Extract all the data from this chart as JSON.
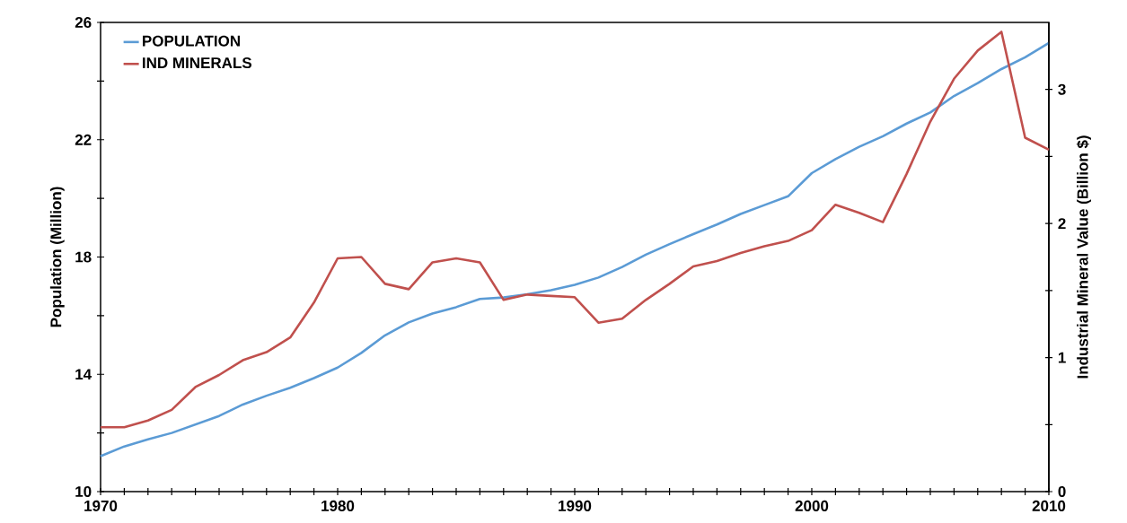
{
  "chart_data": {
    "type": "line",
    "ylabel": "Population (Million)",
    "y2label": "Industrial Mineral Value (Billion $)",
    "x": [
      1970,
      1971,
      1972,
      1973,
      1974,
      1975,
      1976,
      1977,
      1978,
      1979,
      1980,
      1981,
      1982,
      1983,
      1984,
      1985,
      1986,
      1987,
      1988,
      1989,
      1990,
      1991,
      1992,
      1993,
      1994,
      1995,
      1996,
      1997,
      1998,
      1999,
      2000,
      2001,
      2002,
      2003,
      2004,
      2005,
      2006,
      2007,
      2008,
      2009,
      2010
    ],
    "series": [
      {
        "name": "POPULATION",
        "color": "#5b9bd5",
        "values": [
          11.21,
          11.54,
          11.78,
          12.0,
          12.29,
          12.58,
          12.97,
          13.27,
          13.54,
          13.87,
          14.23,
          14.73,
          15.33,
          15.77,
          16.07,
          16.29,
          16.57,
          16.62,
          16.73,
          16.87,
          17.05,
          17.3,
          17.66,
          18.08,
          18.44,
          18.78,
          19.11,
          19.47,
          19.77,
          20.07,
          20.86,
          21.34,
          21.76,
          22.12,
          22.55,
          22.93,
          23.49,
          23.93,
          24.41,
          24.81,
          25.3
        ]
      },
      {
        "name": "IND MINERALS",
        "color": "#c0504d",
        "axis": "y2",
        "values": [
          0.48,
          0.48,
          0.53,
          0.61,
          0.78,
          0.87,
          0.98,
          1.04,
          1.15,
          1.41,
          1.74,
          1.75,
          1.55,
          1.51,
          1.71,
          1.74,
          1.71,
          1.43,
          1.47,
          1.46,
          1.45,
          1.26,
          1.29,
          1.43,
          1.55,
          1.68,
          1.72,
          1.78,
          1.83,
          1.87,
          1.95,
          2.14,
          2.08,
          2.01,
          2.37,
          2.76,
          3.08,
          3.29,
          3.43,
          2.64,
          2.55
        ]
      }
    ],
    "xlim": [
      1970,
      2010
    ],
    "xticks": [
      1970,
      {
        "value": 1971,
        "label": null
      },
      {
        "value": 1972,
        "label": null
      },
      {
        "value": 1973,
        "label": null
      },
      {
        "value": 1974,
        "label": null
      },
      {
        "value": 1975,
        "label": null
      },
      {
        "value": 1976,
        "label": null
      },
      {
        "value": 1977,
        "label": null
      },
      {
        "value": 1978,
        "label": null
      },
      {
        "value": 1979,
        "label": null
      },
      1980,
      {
        "value": 1981,
        "label": null
      },
      {
        "value": 1982,
        "label": null
      },
      {
        "value": 1983,
        "label": null
      },
      {
        "value": 1984,
        "label": null
      },
      {
        "value": 1985,
        "label": null
      },
      {
        "value": 1986,
        "label": null
      },
      {
        "value": 1987,
        "label": null
      },
      {
        "value": 1988,
        "label": null
      },
      {
        "value": 1989,
        "label": null
      },
      1990,
      {
        "value": 1991,
        "label": null
      },
      {
        "value": 1992,
        "label": null
      },
      {
        "value": 1993,
        "label": null
      },
      {
        "value": 1994,
        "label": null
      },
      {
        "value": 1995,
        "label": null
      },
      {
        "value": 1996,
        "label": null
      },
      {
        "value": 1997,
        "label": null
      },
      {
        "value": 1998,
        "label": null
      },
      {
        "value": 1999,
        "label": null
      },
      2000,
      {
        "value": 2001,
        "label": null
      },
      {
        "value": 2002,
        "label": null
      },
      {
        "value": 2003,
        "label": null
      },
      {
        "value": 2004,
        "label": null
      },
      {
        "value": 2005,
        "label": null
      },
      {
        "value": 2006,
        "label": null
      },
      {
        "value": 2007,
        "label": null
      },
      {
        "value": 2008,
        "label": null
      },
      {
        "value": 2009,
        "label": null
      },
      2010
    ],
    "ylim": [
      10,
      26
    ],
    "yticks": [
      10,
      {
        "value": 12,
        "label": null
      },
      14,
      {
        "value": 16,
        "label": null
      },
      18,
      {
        "value": 20,
        "label": null
      },
      22,
      {
        "value": 24,
        "label": null
      },
      26
    ],
    "y2lim": [
      0,
      3.5
    ],
    "y2ticks": [
      0,
      {
        "value": 0.5,
        "label": null
      },
      1,
      {
        "value": 1.5,
        "label": null
      },
      2,
      {
        "value": 2.5,
        "label": null
      },
      3
    ],
    "legend": "top left",
    "grid": false,
    "marker": "none",
    "line_style": "solid"
  }
}
